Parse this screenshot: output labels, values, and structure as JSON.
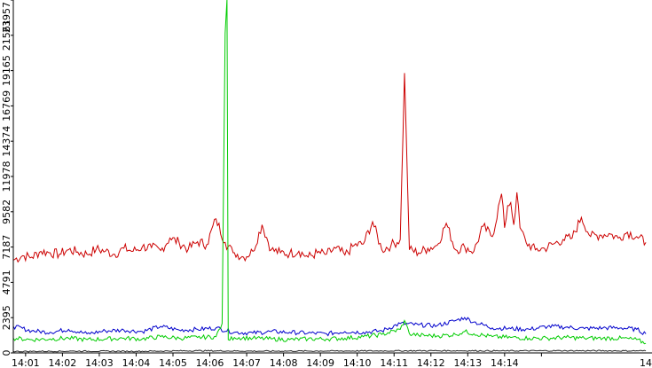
{
  "chart_data": {
    "type": "line",
    "title": "",
    "xlabel": "",
    "ylabel": "",
    "x_tick_labels": [
      "14:01",
      "14:02",
      "14:03",
      "14:04",
      "14:05",
      "14:06",
      "14:07",
      "14:08",
      "14:09",
      "14:10",
      "14:11",
      "14:12",
      "14:13",
      "14:14",
      "14"
    ],
    "y_tick_labels": [
      "0",
      "2395",
      "4791",
      "7187",
      "9582",
      "11978",
      "14374",
      "16769",
      "19165",
      "21561",
      "23957"
    ],
    "xlim": [
      "14:00:40",
      "14:15:00"
    ],
    "ylim": [
      0,
      23957
    ],
    "grid": false,
    "legend": "none",
    "series": [
      {
        "color": "#cc0000",
        "points": [
          [
            0,
            6300
          ],
          [
            15,
            6600
          ],
          [
            30,
            6500
          ],
          [
            45,
            6900
          ],
          [
            60,
            6800
          ],
          [
            75,
            6700
          ],
          [
            90,
            7000
          ],
          [
            105,
            6850
          ],
          [
            120,
            6700
          ],
          [
            135,
            7050
          ],
          [
            150,
            6900
          ],
          [
            165,
            6700
          ],
          [
            180,
            7100
          ],
          [
            195,
            6900
          ],
          [
            210,
            7200
          ],
          [
            225,
            7150
          ],
          [
            240,
            6950
          ],
          [
            255,
            7800
          ],
          [
            270,
            7500
          ],
          [
            285,
            7050
          ],
          [
            300,
            7550
          ],
          [
            315,
            7350
          ],
          [
            330,
            9100
          ],
          [
            345,
            7500
          ],
          [
            358,
            6800
          ],
          [
            360,
            6800
          ],
          [
            375,
            6500
          ],
          [
            390,
            6900
          ],
          [
            405,
            8700
          ],
          [
            420,
            7000
          ],
          [
            435,
            6800
          ],
          [
            450,
            6750
          ],
          [
            465,
            6900
          ],
          [
            480,
            6500
          ],
          [
            495,
            6800
          ],
          [
            510,
            6700
          ],
          [
            525,
            7100
          ],
          [
            540,
            6650
          ],
          [
            555,
            7300
          ],
          [
            570,
            7400
          ],
          [
            585,
            8900
          ],
          [
            600,
            7000
          ],
          [
            615,
            7300
          ],
          [
            630,
            7700
          ],
          [
            637,
            19000
          ],
          [
            645,
            7000
          ],
          [
            660,
            6800
          ],
          [
            675,
            7100
          ],
          [
            690,
            7300
          ],
          [
            705,
            8800
          ],
          [
            720,
            7000
          ],
          [
            735,
            7200
          ],
          [
            750,
            6900
          ],
          [
            765,
            8600
          ],
          [
            780,
            7900
          ],
          [
            795,
            10800
          ],
          [
            800,
            8500
          ],
          [
            805,
            10000
          ],
          [
            810,
            10200
          ],
          [
            815,
            8700
          ],
          [
            820,
            10900
          ],
          [
            825,
            8500
          ],
          [
            835,
            7500
          ],
          [
            850,
            7000
          ],
          [
            865,
            7100
          ],
          [
            880,
            7400
          ],
          [
            895,
            7700
          ],
          [
            910,
            7800
          ],
          [
            925,
            9200
          ],
          [
            940,
            7900
          ],
          [
            955,
            8000
          ],
          [
            970,
            8100
          ],
          [
            985,
            7800
          ],
          [
            1000,
            8200
          ],
          [
            1015,
            7900
          ],
          [
            1030,
            7500
          ]
        ]
      },
      {
        "color": "#0000cc",
        "points": [
          [
            0,
            1800
          ],
          [
            30,
            1500
          ],
          [
            60,
            1400
          ],
          [
            90,
            1600
          ],
          [
            120,
            1300
          ],
          [
            150,
            1500
          ],
          [
            180,
            1550
          ],
          [
            210,
            1450
          ],
          [
            240,
            1800
          ],
          [
            270,
            1550
          ],
          [
            300,
            1600
          ],
          [
            330,
            1700
          ],
          [
            360,
            1400
          ],
          [
            390,
            1350
          ],
          [
            420,
            1450
          ],
          [
            450,
            1400
          ],
          [
            480,
            1350
          ],
          [
            510,
            1300
          ],
          [
            540,
            1450
          ],
          [
            570,
            1400
          ],
          [
            600,
            1500
          ],
          [
            630,
            2000
          ],
          [
            660,
            1900
          ],
          [
            690,
            1850
          ],
          [
            720,
            2200
          ],
          [
            735,
            2400
          ],
          [
            750,
            2100
          ],
          [
            780,
            1700
          ],
          [
            810,
            1650
          ],
          [
            840,
            1600
          ],
          [
            870,
            1800
          ],
          [
            900,
            1750
          ],
          [
            930,
            1650
          ],
          [
            960,
            1700
          ],
          [
            990,
            1700
          ],
          [
            1015,
            1600
          ],
          [
            1030,
            1300
          ]
        ]
      },
      {
        "color": "#00cc00",
        "points": [
          [
            0,
            1000
          ],
          [
            30,
            900
          ],
          [
            60,
            950
          ],
          [
            90,
            1000
          ],
          [
            120,
            900
          ],
          [
            150,
            950
          ],
          [
            180,
            1000
          ],
          [
            210,
            950
          ],
          [
            240,
            1100
          ],
          [
            270,
            1000
          ],
          [
            300,
            1050
          ],
          [
            330,
            1100
          ],
          [
            340,
            2000
          ],
          [
            345,
            21700
          ],
          [
            348,
            24000
          ],
          [
            350,
            900
          ],
          [
            360,
            1050
          ],
          [
            390,
            1000
          ],
          [
            420,
            950
          ],
          [
            450,
            900
          ],
          [
            480,
            950
          ],
          [
            510,
            950
          ],
          [
            540,
            1000
          ],
          [
            570,
            1100
          ],
          [
            600,
            1250
          ],
          [
            630,
            1600
          ],
          [
            637,
            2200
          ],
          [
            645,
            1300
          ],
          [
            660,
            1200
          ],
          [
            690,
            1150
          ],
          [
            720,
            1250
          ],
          [
            735,
            1450
          ],
          [
            750,
            1300
          ],
          [
            780,
            1100
          ],
          [
            810,
            1050
          ],
          [
            840,
            1000
          ],
          [
            870,
            1000
          ],
          [
            900,
            1050
          ],
          [
            930,
            1000
          ],
          [
            960,
            1000
          ],
          [
            990,
            1000
          ],
          [
            1015,
            900
          ],
          [
            1030,
            650
          ]
        ]
      },
      {
        "color": "#222222",
        "points": [
          [
            0,
            100
          ],
          [
            100,
            120
          ],
          [
            200,
            110
          ],
          [
            300,
            150
          ],
          [
            400,
            120
          ],
          [
            500,
            130
          ],
          [
            600,
            140
          ],
          [
            700,
            150
          ],
          [
            800,
            140
          ],
          [
            900,
            150
          ],
          [
            1030,
            140
          ]
        ]
      }
    ]
  }
}
